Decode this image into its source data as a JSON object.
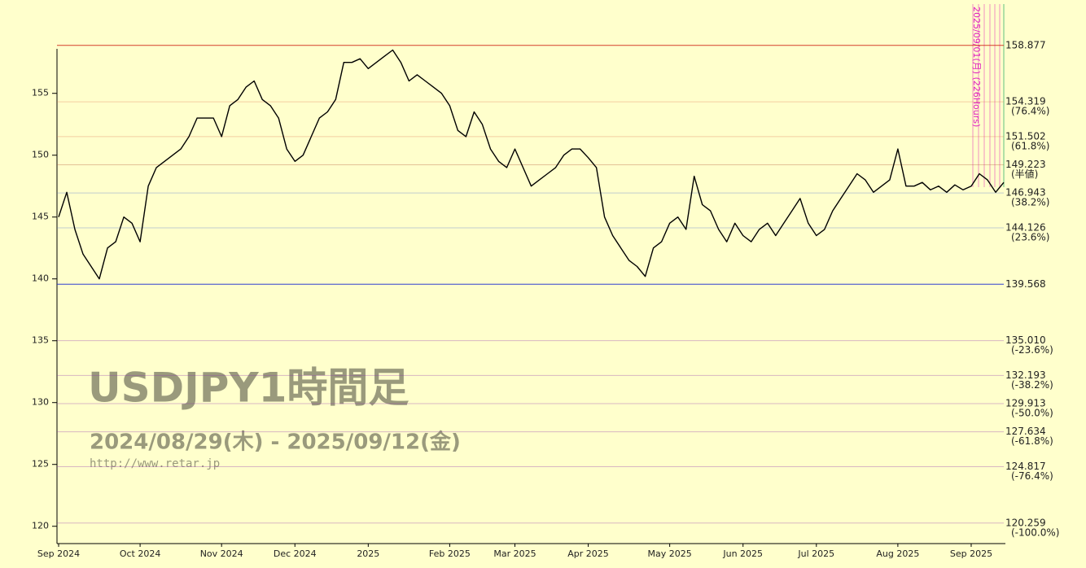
{
  "chart_data": {
    "type": "line",
    "title": "USDJPY1時間足",
    "subtitle": "2024/08/29(木) - 2025/09/12(金)",
    "source": "http://www.retar.jp",
    "annotation": "2025/09/01(月) (226Hours)",
    "color": "#000000",
    "categories": [
      "Sep 2024",
      null,
      null,
      null,
      null,
      null,
      null,
      null,
      null,
      null,
      "Oct 2024",
      null,
      null,
      null,
      null,
      null,
      null,
      null,
      null,
      null,
      "Nov 2024",
      null,
      null,
      null,
      null,
      null,
      null,
      null,
      null,
      "Dec 2024",
      null,
      null,
      null,
      null,
      null,
      null,
      null,
      null,
      "2025",
      null,
      null,
      null,
      null,
      null,
      null,
      null,
      null,
      null,
      "Feb 2025",
      null,
      null,
      null,
      null,
      null,
      null,
      null,
      "Mar 2025",
      null,
      null,
      null,
      null,
      null,
      null,
      null,
      null,
      "Apr 2025",
      null,
      null,
      null,
      null,
      null,
      null,
      null,
      null,
      null,
      "May 2025",
      null,
      null,
      null,
      null,
      null,
      null,
      null,
      null,
      "Jun 2025",
      null,
      null,
      null,
      null,
      null,
      null,
      null,
      null,
      "Jul 2025",
      null,
      null,
      null,
      null,
      null,
      null,
      null,
      null,
      null,
      "Aug 2025",
      null,
      null,
      null,
      null,
      null,
      null,
      null,
      null,
      "Sep 2025",
      null,
      null,
      null,
      null
    ],
    "values": [
      145,
      147,
      144,
      142,
      141,
      140,
      142.5,
      143,
      145,
      144.5,
      143,
      147.5,
      149,
      149.5,
      150,
      150.5,
      151.5,
      153,
      153,
      153,
      151.5,
      154,
      154.5,
      155.5,
      156,
      154.5,
      154,
      153,
      150.5,
      149.5,
      150,
      151.5,
      153,
      153.5,
      154.5,
      157.5,
      157.5,
      157.8,
      157,
      157.5,
      158,
      158.5,
      157.5,
      156,
      156.5,
      156,
      155.5,
      155,
      154,
      152,
      151.5,
      153.5,
      152.5,
      150.5,
      149.5,
      149,
      150.5,
      149,
      147.5,
      148,
      148.5,
      149,
      150,
      150.5,
      150.5,
      149.8,
      149,
      145,
      143.5,
      142.5,
      141.5,
      141,
      140.2,
      142.5,
      143,
      144.5,
      145,
      144,
      148.3,
      146,
      145.5,
      144,
      143,
      144.5,
      143.5,
      143,
      144,
      144.5,
      143.5,
      144.5,
      145.5,
      146.5,
      144.5,
      143.5,
      144,
      145.5,
      146.5,
      147.5,
      148.5,
      148,
      147,
      147.5,
      148,
      150.5,
      147.5,
      147.5,
      147.8,
      147.2,
      147.5,
      147,
      147.6,
      147.2,
      147.5,
      148.5,
      148,
      147,
      147.8
    ],
    "ylim": [
      118.6,
      158.6
    ],
    "yticks": [
      120,
      125,
      130,
      135,
      140,
      145,
      150,
      155
    ],
    "levels": [
      {
        "value": 158.877,
        "label": "158.877",
        "color": "#d02818"
      },
      {
        "value": 154.319,
        "label": "154.319",
        "note": "(76.4%)",
        "color": "#e07050"
      },
      {
        "value": 151.502,
        "label": "151.502",
        "note": "(61.8%)",
        "color": "#e07050"
      },
      {
        "value": 149.223,
        "label": "149.223",
        "note": "(半値)",
        "color": "#b05030"
      },
      {
        "value": 146.943,
        "label": "146.943",
        "note": "(38.2%)",
        "color": "#4a70d0"
      },
      {
        "value": 144.126,
        "label": "144.126",
        "note": "(23.6%)",
        "color": "#4a70d0"
      },
      {
        "value": 139.568,
        "label": "139.568",
        "color": "#1a2ad0"
      },
      {
        "value": 135.01,
        "label": "135.010",
        "note": "(-23.6%)",
        "color": "#9030b0"
      },
      {
        "value": 132.193,
        "label": "132.193",
        "note": "(-38.2%)",
        "color": "#9030b0"
      },
      {
        "value": 129.913,
        "label": "129.913",
        "note": "(-50.0%)",
        "color": "#9030b0"
      },
      {
        "value": 127.634,
        "label": "127.634",
        "note": "(-61.8%)",
        "color": "#9030b0"
      },
      {
        "value": 124.817,
        "label": "124.817",
        "note": "(-76.4%)",
        "color": "#9030b0"
      },
      {
        "value": 120.259,
        "label": "120.259",
        "note": "(-100.0%)",
        "color": "#9030b0"
      }
    ]
  }
}
